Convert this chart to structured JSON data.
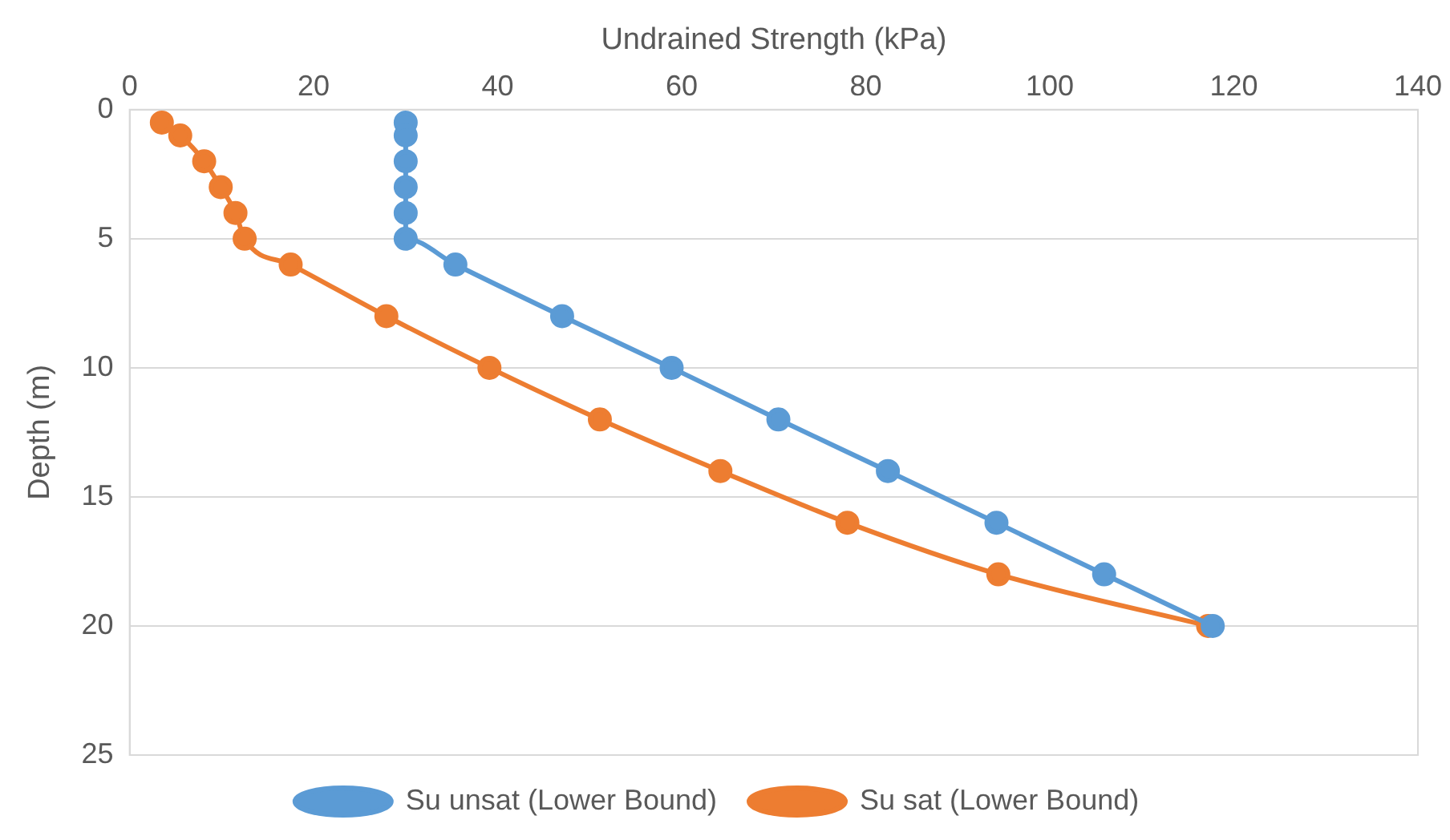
{
  "chart_data": {
    "type": "line",
    "xlabel": "Undrained Strength (kPa)",
    "ylabel": "Depth (m)",
    "xlim": [
      0,
      140
    ],
    "xticks": [
      0,
      20,
      40,
      60,
      80,
      100,
      120,
      140
    ],
    "ylim": [
      25,
      0
    ],
    "yticks": [
      0,
      5,
      10,
      15,
      20,
      25
    ],
    "grid": "y",
    "legend": "bottom",
    "marker": "circle",
    "line_style": "solid",
    "series": [
      {
        "name": "Su sat (Lower Bound)",
        "color": "#ed7d31",
        "x": [
          3.5,
          5.5,
          8.1,
          9.9,
          11.5,
          12.5,
          17.5,
          27.9,
          39.1,
          51.1,
          64.2,
          78,
          94.4,
          117.2
        ],
        "values": [
          0.5,
          1,
          2,
          3,
          4,
          5,
          6,
          8,
          10,
          12,
          14,
          16,
          18,
          20
        ]
      },
      {
        "name": "Su unsat (Lower Bound)",
        "color": "#5b9bd5",
        "x": [
          30,
          30,
          30,
          30,
          30,
          30,
          35.4,
          47,
          58.9,
          70.5,
          82.4,
          94.2,
          105.9,
          117.7
        ],
        "values": [
          0.5,
          1,
          2,
          3,
          4,
          5,
          6,
          8,
          10,
          12,
          14,
          16,
          18,
          20
        ]
      }
    ]
  }
}
